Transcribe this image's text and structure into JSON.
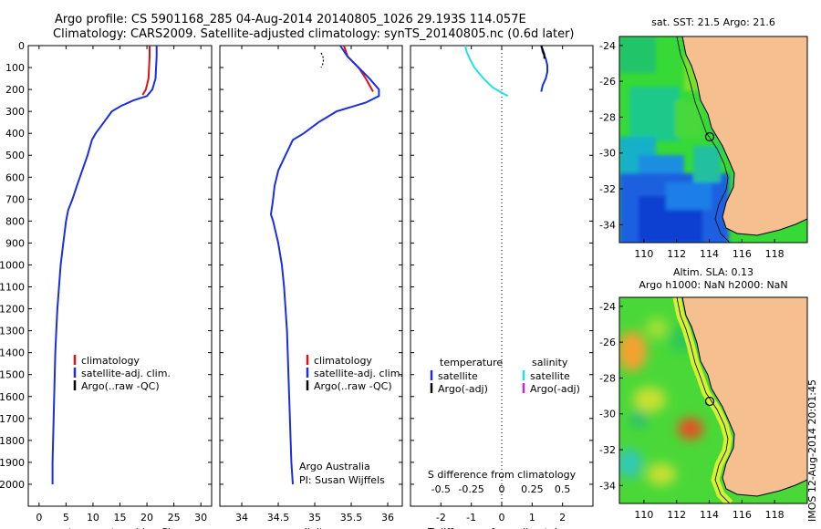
{
  "header": {
    "line1": "Argo profile: CS 5901168_285 04-Aug-2014 20140805_1026 29.193S 114.057E",
    "line2": "Climatology: CARS2009. Satellite-adjusted climatology: synTS_20140805.nc (0.6d later)"
  },
  "side_label": "IMOS 12-Aug-2014 20:01:45",
  "colors": {
    "climatology": "#dd1111",
    "satellite": "#1a2ee0",
    "argo": "#000000",
    "satellite_s": "#22e0e0",
    "argo_s": "#d020d0",
    "land": "#f6bf8f"
  },
  "chart_data": [
    {
      "type": "line",
      "name": "temperature",
      "xlabel": "temperature (deg C)",
      "ylabel": "",
      "xlim": [
        -2,
        32
      ],
      "ylim": [
        2100,
        0
      ],
      "xticks": [
        0,
        5,
        10,
        15,
        20,
        25,
        30
      ],
      "yticks": [
        0,
        100,
        200,
        300,
        400,
        500,
        600,
        700,
        800,
        900,
        1000,
        1100,
        1200,
        1300,
        1400,
        1500,
        1600,
        1700,
        1800,
        1900,
        2000
      ],
      "series": [
        {
          "name": "climatology",
          "color": "#dd1111",
          "points": [
            [
              20.5,
              0
            ],
            [
              20.5,
              50
            ],
            [
              20.4,
              100
            ],
            [
              20.3,
              150
            ],
            [
              19.8,
              200
            ],
            [
              19.2,
              225
            ]
          ]
        },
        {
          "name": "satellite-adj. clim.",
          "color": "#1a2ee0",
          "points": [
            [
              21.8,
              0
            ],
            [
              21.8,
              50
            ],
            [
              21.7,
              100
            ],
            [
              21.6,
              150
            ],
            [
              21.0,
              200
            ],
            [
              20.0,
              230
            ],
            [
              17.5,
              250
            ],
            [
              15.2,
              275
            ],
            [
              13.5,
              300
            ],
            [
              12.0,
              350
            ],
            [
              10.5,
              400
            ],
            [
              9.8,
              430
            ],
            [
              9.0,
              500
            ],
            [
              8.0,
              570
            ],
            [
              7.0,
              640
            ],
            [
              6.2,
              700
            ],
            [
              5.4,
              750
            ],
            [
              5.0,
              800
            ],
            [
              4.5,
              900
            ],
            [
              4.0,
              1000
            ],
            [
              3.7,
              1100
            ],
            [
              3.4,
              1200
            ],
            [
              3.2,
              1300
            ],
            [
              3.0,
              1400
            ],
            [
              2.9,
              1500
            ],
            [
              2.8,
              1600
            ],
            [
              2.7,
              1700
            ],
            [
              2.6,
              1800
            ],
            [
              2.5,
              1900
            ],
            [
              2.5,
              2000
            ]
          ]
        },
        {
          "name": "Argo(..raw -QC)",
          "color": "#000000",
          "points": []
        }
      ],
      "legend": [
        "climatology",
        "satellite-adj. clim.",
        "Argo(..raw -QC)"
      ],
      "legend_placement": "lower-middle"
    },
    {
      "type": "line",
      "name": "salinity",
      "xlabel": "salinity",
      "xlim": [
        33.7,
        36.2
      ],
      "ylim": [
        2100,
        0
      ],
      "xticks": [
        34,
        34.5,
        35,
        35.5,
        36
      ],
      "xticklabels": [
        "34",
        "34.5",
        "35",
        "35.5",
        "36"
      ],
      "series": [
        {
          "name": "climatology",
          "color": "#dd1111",
          "points": [
            [
              35.4,
              0
            ],
            [
              35.45,
              50
            ],
            [
              35.6,
              100
            ],
            [
              35.7,
              150
            ],
            [
              35.8,
              210
            ]
          ]
        },
        {
          "name": "satellite-adj. clim.",
          "color": "#1a2ee0",
          "points": [
            [
              35.35,
              0
            ],
            [
              35.45,
              50
            ],
            [
              35.6,
              100
            ],
            [
              35.75,
              150
            ],
            [
              35.88,
              200
            ],
            [
              35.88,
              230
            ],
            [
              35.7,
              260
            ],
            [
              35.3,
              300
            ],
            [
              35.05,
              350
            ],
            [
              34.85,
              400
            ],
            [
              34.7,
              430
            ],
            [
              34.6,
              500
            ],
            [
              34.5,
              570
            ],
            [
              34.45,
              640
            ],
            [
              34.43,
              700
            ],
            [
              34.4,
              770
            ],
            [
              34.43,
              800
            ],
            [
              34.5,
              900
            ],
            [
              34.55,
              1000
            ],
            [
              34.58,
              1100
            ],
            [
              34.6,
              1200
            ],
            [
              34.62,
              1300
            ],
            [
              34.63,
              1400
            ],
            [
              34.64,
              1500
            ],
            [
              34.65,
              1600
            ],
            [
              34.66,
              1700
            ],
            [
              34.67,
              1800
            ],
            [
              34.68,
              1900
            ],
            [
              34.7,
              2000
            ]
          ]
        },
        {
          "name": "Argo(..raw -QC)",
          "color": "#000000",
          "points": []
        }
      ],
      "legend": [
        "climatology",
        "satellite-adj. clim.",
        "Argo(..raw -QC)"
      ],
      "legend_placement": "lower-middle",
      "annotation": [
        "Argo Australia",
        "PI: Susan Wijffels"
      ]
    },
    {
      "type": "line",
      "name": "difference",
      "xlabel": "T difference from climatology",
      "xlabel_top": "S difference from climatology",
      "xlim": [
        -3,
        3
      ],
      "ylim": [
        2100,
        0
      ],
      "xticks": [
        -2,
        -1,
        0,
        1,
        2
      ],
      "xticklabels_s": [
        "-0.5",
        "-0.25",
        "0",
        "0.25",
        "0.5"
      ],
      "series": [
        {
          "name": "temperature satellite",
          "color": "#1a2ee0",
          "points": [
            [
              1.3,
              0
            ],
            [
              1.35,
              30
            ],
            [
              1.45,
              60
            ],
            [
              1.5,
              90
            ],
            [
              1.5,
              120
            ],
            [
              1.45,
              150
            ],
            [
              1.35,
              180
            ],
            [
              1.3,
              210
            ]
          ]
        },
        {
          "name": "temperature Argo(-adj)",
          "color": "#000000",
          "points": [
            [
              1.3,
              0
            ],
            [
              1.35,
              20
            ],
            [
              1.4,
              40
            ],
            [
              1.4,
              60
            ]
          ]
        },
        {
          "name": "salinity satellite",
          "color": "#22e0e0",
          "points": [
            [
              -1.2,
              0
            ],
            [
              -1.15,
              30
            ],
            [
              -1.05,
              60
            ],
            [
              -0.9,
              100
            ],
            [
              -0.6,
              150
            ],
            [
              -0.3,
              190
            ],
            [
              0.0,
              215
            ],
            [
              0.2,
              230
            ]
          ]
        },
        {
          "name": "salinity Argo(-adj)",
          "color": "#d020d0",
          "points": []
        }
      ],
      "legend_headers": [
        "temperature",
        "salinity"
      ],
      "legend": [
        "satellite",
        "Argo(-adj)",
        "satellite",
        "Argo(-adj)"
      ],
      "legend_placement": "lower-middle"
    },
    {
      "type": "heatmap",
      "name": "sst-map",
      "title": "sat. SST: 21.5 Argo: 21.6",
      "xlim": [
        108.5,
        120
      ],
      "ylim": [
        -35,
        -23.5
      ],
      "xticks": [
        110,
        112,
        114,
        116,
        118
      ],
      "yticks": [
        -24,
        -26,
        -28,
        -30,
        -32,
        -34
      ],
      "argo_position": [
        114.057,
        -29.193
      ]
    },
    {
      "type": "heatmap",
      "name": "sla-map",
      "title": "Altim. SLA: 0.13",
      "subtitle": "Argo h1000: NaN h2000: NaN",
      "xlim": [
        108.5,
        120
      ],
      "ylim": [
        -35,
        -23.5
      ],
      "xticks": [
        110,
        112,
        114,
        116,
        118
      ],
      "yticks": [
        -24,
        -26,
        -28,
        -30,
        -32,
        -34
      ],
      "argo_position": [
        114.057,
        -29.193
      ]
    }
  ]
}
